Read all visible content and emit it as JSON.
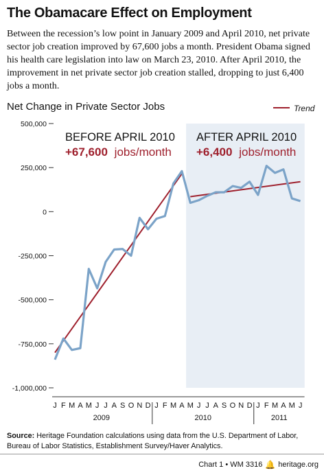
{
  "header": {
    "title": "The Obamacare Effect on Employment",
    "intro": "Between the recession’s low point in January 2009 and April 2010, net private sector job creation improved by 67,600 jobs a month. President Obama signed his health care legislation into law on March 23, 2010. After April 2010, the improvement in net private sector job creation stalled, dropping to just 6,400 jobs a month."
  },
  "chart_data": {
    "type": "line",
    "title": "Net Change in Private Sector Jobs",
    "legend": {
      "placement": "top-right",
      "trend_label": "Trend"
    },
    "x_month_labels": [
      "J",
      "F",
      "M",
      "A",
      "M",
      "J",
      "J",
      "A",
      "S",
      "O",
      "N",
      "D",
      "J",
      "F",
      "M",
      "A",
      "M",
      "J",
      "J",
      "A",
      "S",
      "O",
      "N",
      "D",
      "J",
      "F",
      "M",
      "A",
      "M",
      "J"
    ],
    "x_year_labels": [
      {
        "label": "2009",
        "center_index": 5.5
      },
      {
        "label": "2010",
        "center_index": 17.5
      },
      {
        "label": "2011",
        "center_index": 26.5
      }
    ],
    "ylim": [
      -1000000,
      500000
    ],
    "y_ticks": [
      500000,
      250000,
      0,
      -250000,
      -500000,
      -750000,
      -1000000
    ],
    "y_tick_labels": [
      "500,000",
      "250,000",
      "0",
      "-250,000",
      "-500,000",
      "-750,000",
      "-1,000,000"
    ],
    "grid": false,
    "series": [
      {
        "values": [
          -840000,
          -720000,
          -785000,
          -775000,
          -325000,
          -435000,
          -285000,
          -215000,
          -212000,
          -250000,
          -35000,
          -100000,
          -40000,
          -25000,
          160000,
          230000,
          50000,
          65000,
          90000,
          110000,
          110000,
          145000,
          135000,
          170000,
          95000,
          260000,
          220000,
          240000,
          75000,
          60000
        ]
      }
    ],
    "trends": [
      {
        "name": "Trend",
        "x": [
          0,
          15
        ],
        "y": [
          -800000,
          215000
        ]
      },
      {
        "name": "Trend",
        "x": [
          16,
          29
        ],
        "y": [
          85000,
          170000
        ]
      }
    ],
    "highlight_region": {
      "from_index": 15.5,
      "to_index": 29.5
    },
    "annotations": {
      "before_label": "BEFORE APRIL 2010",
      "before_value": "+67,600",
      "before_unit": "jobs/month",
      "after_label": "AFTER APRIL 2010",
      "after_value": "+6,400",
      "after_unit": "jobs/month"
    },
    "colors": {
      "series": "#7ba3c8",
      "trend": "#9e1f2c",
      "highlight": "#e8eef5",
      "accent": "#9e1f2c"
    }
  },
  "footer": {
    "source_label": "Source:",
    "source_text": " Heritage Foundation calculations using data from the U.S. Department of Labor, Bureau of Labor Statistics, Establishment Survey/Haver Analytics.",
    "chart_id": "Chart 1 • WM 3316",
    "site": "heritage.org"
  }
}
